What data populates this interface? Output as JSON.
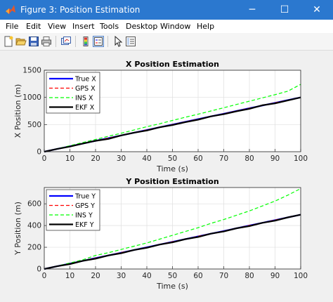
{
  "window": {
    "title": "Figure 3: Position Estimation",
    "app_icon": "matlab-logo-icon",
    "controls": {
      "minimize": "─",
      "maximize": "☐",
      "close": "✕"
    }
  },
  "menu": {
    "items": [
      {
        "label": "File"
      },
      {
        "label": "Edit"
      },
      {
        "label": "View"
      },
      {
        "label": "Insert"
      },
      {
        "label": "Tools"
      },
      {
        "label": "Desktop"
      },
      {
        "label": "Window"
      },
      {
        "label": "Help"
      }
    ]
  },
  "toolbar": {
    "icons": [
      "new-figure-icon",
      "open-file-icon",
      "save-icon",
      "print-icon",
      "link-plot-icon",
      "insert-colorbar-icon",
      "insert-legend-icon",
      "pointer-icon",
      "property-editor-icon"
    ]
  },
  "colors": {
    "titlebar": "#2b78cf",
    "true_series": "#0000ff",
    "gps_series": "#ff0000",
    "ins_series": "#00ff00",
    "ekf_series": "#000000"
  },
  "chart_data": [
    {
      "type": "line",
      "title": "X Position Estimation",
      "xlabel": "Time (s)",
      "ylabel": "X Position (m)",
      "xlim": [
        0,
        100
      ],
      "ylim": [
        0,
        1500
      ],
      "xticks": [
        "0",
        "10",
        "20",
        "30",
        "40",
        "50",
        "60",
        "70",
        "80",
        "90",
        "100"
      ],
      "yticks": [
        "0",
        "500",
        "1000",
        "1500"
      ],
      "grid": true,
      "legend_position": "top-left",
      "x": [
        0,
        5,
        10,
        15,
        20,
        25,
        30,
        35,
        40,
        45,
        50,
        55,
        60,
        65,
        70,
        75,
        80,
        85,
        90,
        95,
        100
      ],
      "series": [
        {
          "name": "True X",
          "values": [
            0,
            50,
            100,
            150,
            200,
            250,
            300,
            350,
            400,
            450,
            500,
            550,
            600,
            650,
            700,
            750,
            800,
            850,
            900,
            950,
            1000
          ]
        },
        {
          "name": "GPS X",
          "values": [
            0,
            51,
            99,
            152,
            199,
            251,
            301,
            349,
            402,
            449,
            501,
            551,
            599,
            652,
            699,
            751,
            801,
            849,
            902,
            949,
            1001
          ]
        },
        {
          "name": "INS X",
          "values": [
            0,
            55,
            110,
            170,
            225,
            285,
            340,
            400,
            460,
            515,
            575,
            635,
            690,
            750,
            810,
            870,
            930,
            990,
            1050,
            1115,
            1240
          ]
        },
        {
          "name": "EKF X",
          "values": [
            0,
            50,
            95,
            150,
            200,
            235,
            300,
            350,
            390,
            450,
            490,
            545,
            590,
            650,
            690,
            745,
            790,
            855,
            890,
            945,
            1000
          ]
        }
      ]
    },
    {
      "type": "line",
      "title": "Y Position Estimation",
      "xlabel": "Time (s)",
      "ylabel": "Y Position (m)",
      "xlim": [
        0,
        100
      ],
      "ylim": [
        0,
        750
      ],
      "xticks": [
        "0",
        "10",
        "20",
        "30",
        "40",
        "50",
        "60",
        "70",
        "80",
        "90",
        "100"
      ],
      "yticks": [
        "0",
        "200",
        "400",
        "600"
      ],
      "grid": true,
      "legend_position": "top-left",
      "x": [
        0,
        5,
        10,
        15,
        20,
        25,
        30,
        35,
        40,
        45,
        50,
        55,
        60,
        65,
        70,
        75,
        80,
        85,
        90,
        95,
        100
      ],
      "series": [
        {
          "name": "True Y",
          "values": [
            0,
            25,
            50,
            75,
            100,
            125,
            150,
            175,
            200,
            225,
            250,
            275,
            300,
            325,
            350,
            375,
            400,
            425,
            450,
            475,
            500
          ]
        },
        {
          "name": "GPS Y",
          "values": [
            0,
            26,
            49,
            76,
            101,
            124,
            151,
            176,
            199,
            226,
            251,
            274,
            301,
            326,
            349,
            376,
            401,
            424,
            451,
            476,
            501
          ]
        },
        {
          "name": "INS Y",
          "values": [
            0,
            27,
            55,
            85,
            125,
            150,
            180,
            210,
            240,
            275,
            310,
            345,
            380,
            420,
            455,
            495,
            535,
            580,
            625,
            680,
            740
          ]
        },
        {
          "name": "EKF Y",
          "values": [
            0,
            25,
            45,
            75,
            95,
            125,
            145,
            175,
            195,
            225,
            245,
            275,
            295,
            325,
            345,
            375,
            395,
            425,
            445,
            475,
            500
          ]
        }
      ]
    }
  ]
}
